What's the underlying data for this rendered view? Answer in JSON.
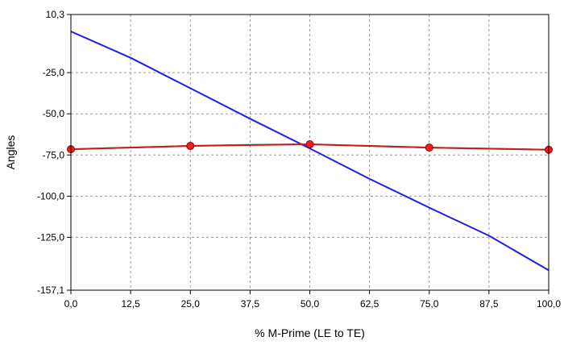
{
  "chart_data": {
    "type": "line",
    "title": "",
    "xlabel": "% M-Prime (LE to TE)",
    "ylabel": "Angles",
    "xlim": [
      0,
      100
    ],
    "ylim": [
      -157.1,
      10.3
    ],
    "x_ticks": [
      0,
      12.5,
      25,
      37.5,
      50,
      62.5,
      75,
      87.5,
      100
    ],
    "x_tick_labels": [
      "0,0",
      "12,5",
      "25,0",
      "37,5",
      "50,0",
      "62,5",
      "75,0",
      "87,5",
      "100,0"
    ],
    "y_ticks": [
      10.3,
      -25,
      -50,
      -75,
      -100,
      -125,
      -157.1
    ],
    "y_tick_labels": [
      "10,3",
      "-25,0",
      "-50,0",
      "-75,0",
      "-100,0",
      "-125,0",
      "-157,1"
    ],
    "grid": true,
    "legend": "none",
    "series": [
      {
        "color": "#1f1fe0",
        "marker": "none",
        "points": [
          [
            0,
            0
          ],
          [
            12.5,
            -16
          ],
          [
            25,
            -34.5
          ],
          [
            37.5,
            -53
          ],
          [
            50,
            -71
          ],
          [
            62.5,
            -89.5
          ],
          [
            75,
            -107
          ],
          [
            87.5,
            -124
          ],
          [
            100,
            -145
          ]
        ]
      },
      {
        "color": "#1aa7a7",
        "marker": "none",
        "points": [
          [
            0,
            -71.5
          ],
          [
            12.5,
            -70.5
          ],
          [
            25,
            -69.5
          ],
          [
            37.5,
            -68.8
          ],
          [
            50,
            -68.5
          ],
          [
            62.5,
            -69.5
          ],
          [
            75,
            -70.5
          ],
          [
            87.5,
            -71.2
          ],
          [
            100,
            -71.8
          ]
        ]
      },
      {
        "color": "#d01818",
        "marker": "circle",
        "marker_color": "#ff1a1a",
        "points": [
          [
            0,
            -71.5
          ],
          [
            25,
            -69.5
          ],
          [
            50,
            -68.5
          ],
          [
            75,
            -70.5
          ],
          [
            100,
            -71.8
          ]
        ]
      }
    ]
  }
}
